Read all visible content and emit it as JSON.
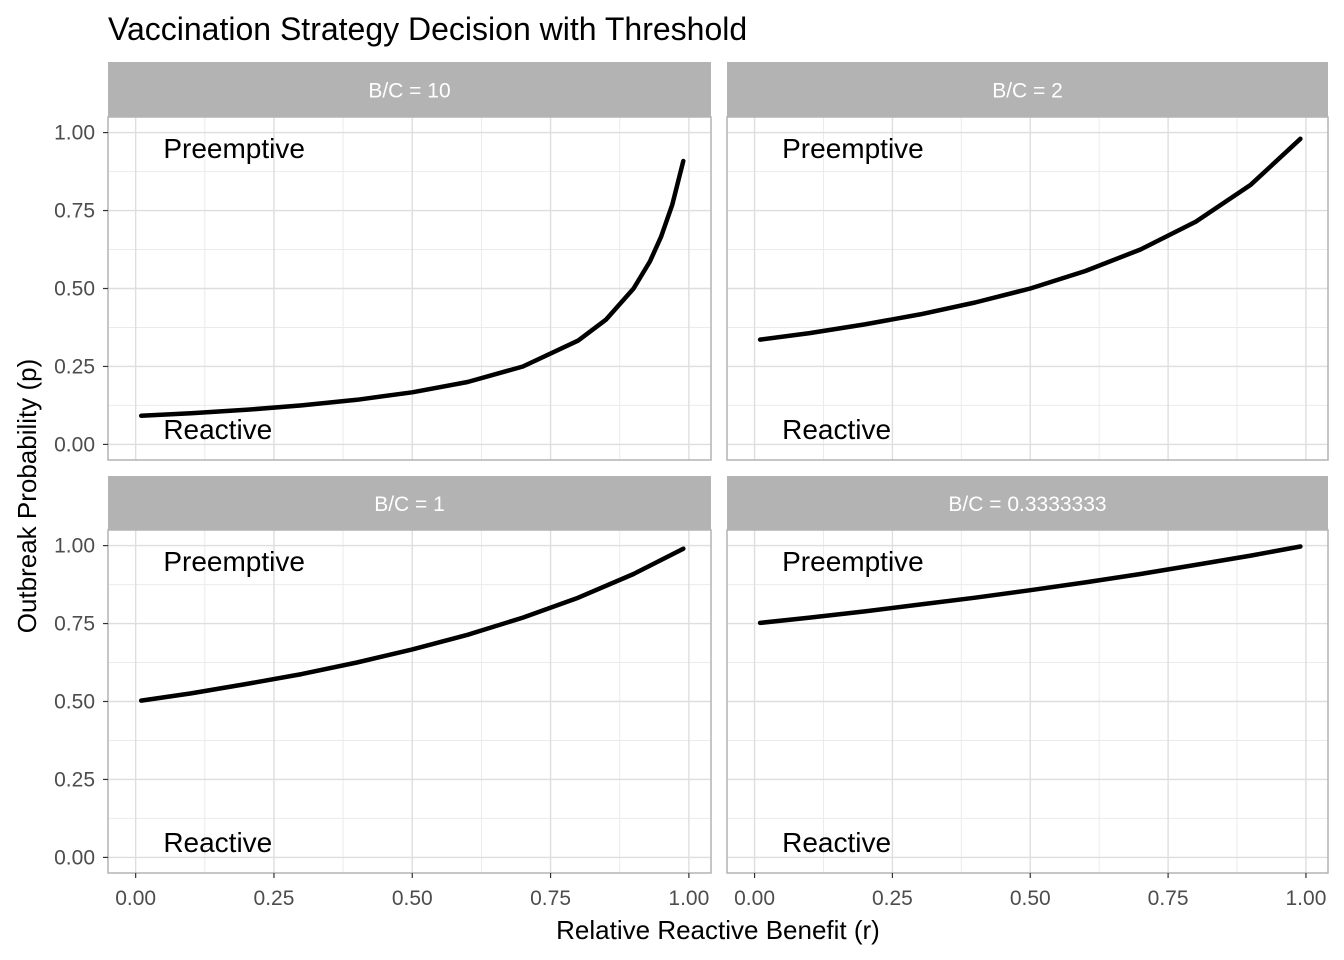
{
  "chart_data": {
    "type": "line",
    "title": "Vaccination Strategy Decision with Threshold",
    "xlabel": "Relative Reactive Benefit (r)",
    "ylabel": "Outbreak Probability (p)",
    "xlim": [
      -0.05,
      1.04
    ],
    "ylim": [
      -0.05,
      1.05
    ],
    "x_ticks": [
      0,
      0.25,
      0.5,
      0.75,
      1
    ],
    "x_tick_labels": [
      "0.00",
      "0.25",
      "0.50",
      "0.75",
      "1.00"
    ],
    "y_ticks": [
      0,
      0.25,
      0.5,
      0.75,
      1
    ],
    "y_tick_labels": [
      "0.00",
      "0.25",
      "0.50",
      "0.75",
      "1.00"
    ],
    "grid": true,
    "line_color": "#000000",
    "strip_color": "#b3b3b3",
    "annotations": {
      "upper": "Preemptive",
      "lower": "Reactive"
    },
    "panels": [
      {
        "label": "B/C = 10",
        "bc": 10,
        "x": [
          0.01,
          0.1,
          0.2,
          0.3,
          0.4,
          0.5,
          0.6,
          0.7,
          0.8,
          0.85,
          0.9,
          0.93,
          0.95,
          0.97,
          0.99
        ],
        "y": [
          0.092,
          0.1,
          0.111,
          0.125,
          0.143,
          0.167,
          0.2,
          0.25,
          0.333,
          0.4,
          0.5,
          0.588,
          0.667,
          0.769,
          0.909
        ]
      },
      {
        "label": "B/C = 2",
        "bc": 2,
        "x": [
          0.01,
          0.1,
          0.2,
          0.3,
          0.4,
          0.5,
          0.6,
          0.7,
          0.8,
          0.9,
          0.99
        ],
        "y": [
          0.336,
          0.357,
          0.385,
          0.417,
          0.455,
          0.5,
          0.556,
          0.625,
          0.714,
          0.833,
          0.98
        ]
      },
      {
        "label": "B/C = 1",
        "bc": 1,
        "x": [
          0.01,
          0.1,
          0.2,
          0.3,
          0.4,
          0.5,
          0.6,
          0.7,
          0.8,
          0.9,
          0.99
        ],
        "y": [
          0.503,
          0.526,
          0.556,
          0.588,
          0.625,
          0.667,
          0.714,
          0.769,
          0.833,
          0.909,
          0.99
        ]
      },
      {
        "label": "B/C = 0.3333333",
        "bc": 0.3333333,
        "x": [
          0.01,
          0.1,
          0.2,
          0.3,
          0.4,
          0.5,
          0.6,
          0.7,
          0.8,
          0.9,
          0.99
        ],
        "y": [
          0.752,
          0.769,
          0.789,
          0.811,
          0.833,
          0.857,
          0.882,
          0.909,
          0.938,
          0.968,
          0.997
        ]
      }
    ]
  }
}
